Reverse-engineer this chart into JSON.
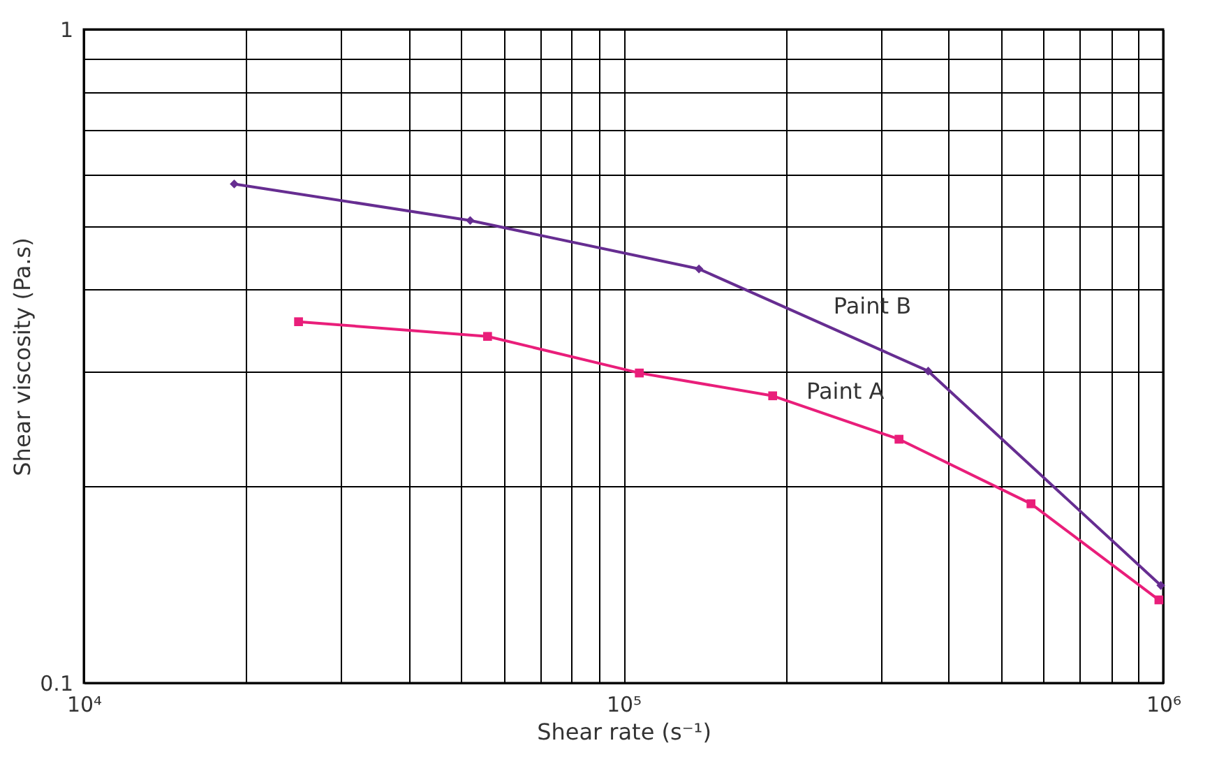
{
  "chart_data": {
    "type": "line",
    "xlabel": "Shear rate (s⁻¹)",
    "ylabel": "Shear viscosity (Pa.s)",
    "log": "xy",
    "grid": true,
    "legend": false,
    "line_style": "solid",
    "xlim": [
      10000,
      1000000
    ],
    "ylim": [
      0.1,
      1
    ],
    "xticks": [
      {
        "value": 10000,
        "label": "10⁴"
      },
      {
        "value": 20000,
        "label": null
      },
      {
        "value": 30000,
        "label": null
      },
      {
        "value": 40000,
        "label": null
      },
      {
        "value": 50000,
        "label": null
      },
      {
        "value": 60000,
        "label": null
      },
      {
        "value": 70000,
        "label": null
      },
      {
        "value": 80000,
        "label": null
      },
      {
        "value": 90000,
        "label": null
      },
      {
        "value": 100000,
        "label": "10⁵"
      },
      {
        "value": 200000,
        "label": null
      },
      {
        "value": 300000,
        "label": null
      },
      {
        "value": 400000,
        "label": null
      },
      {
        "value": 500000,
        "label": null
      },
      {
        "value": 600000,
        "label": null
      },
      {
        "value": 700000,
        "label": null
      },
      {
        "value": 800000,
        "label": null
      },
      {
        "value": 900000,
        "label": null
      },
      {
        "value": 1000000,
        "label": "10⁶"
      }
    ],
    "yticks": [
      0.1,
      {
        "value": 0.2,
        "label": null
      },
      {
        "value": 0.3,
        "label": null
      },
      {
        "value": 0.4,
        "label": null
      },
      {
        "value": 0.5,
        "label": null
      },
      {
        "value": 0.6,
        "label": null
      },
      {
        "value": 0.7,
        "label": null
      },
      {
        "value": 0.8,
        "label": null
      },
      {
        "value": 0.9,
        "label": null
      },
      1
    ],
    "series": [
      {
        "name": "Paint B",
        "color": "#662d91",
        "marker": "diamond",
        "x": [
          19000,
          52000,
          138000,
          367000,
          990000
        ],
        "values": [
          0.58,
          0.51,
          0.43,
          0.3,
          0.141
        ]
      },
      {
        "name": "Paint A",
        "color": "#e91e7a",
        "marker": "square",
        "x": [
          25000,
          56000,
          107000,
          189000,
          324000,
          569000,
          982000
        ],
        "values": [
          0.357,
          0.339,
          0.298,
          0.275,
          0.236,
          0.188,
          0.134
        ]
      }
    ]
  }
}
